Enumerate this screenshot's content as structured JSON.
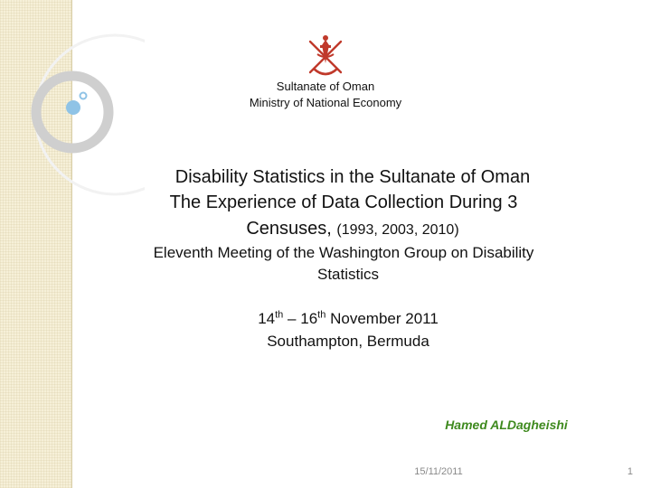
{
  "decoration": {
    "band_color": "#f6f0d8",
    "ring_color": "#cfcfcf",
    "dot_color": "#8fc3e6"
  },
  "emblem": {
    "icon": "oman-national-emblem-icon",
    "color": "#c0392b"
  },
  "header": {
    "line1": "Sultanate of Oman",
    "line2": "Ministry of National Economy"
  },
  "title": {
    "line1": "Disability Statistics in the Sultanate of Oman",
    "line2": "The Experience of Data Collection During 3",
    "line3_main": "Censuses,",
    "line3_years": "(1993, 2003, 2010)"
  },
  "meeting": {
    "line1": "Eleventh Meeting of the Washington Group on Disability",
    "line2": "Statistics"
  },
  "event": {
    "start_day": "14",
    "start_suffix": "th",
    "dash": "–",
    "end_day": "16",
    "end_suffix": "th",
    "month_year": "November 2011",
    "location": "Southampton, Bermuda"
  },
  "author": {
    "name": "Hamed ALDagheishi",
    "color": "#3f8a1f"
  },
  "footer": {
    "date": "15/11/2011",
    "page": "1"
  }
}
